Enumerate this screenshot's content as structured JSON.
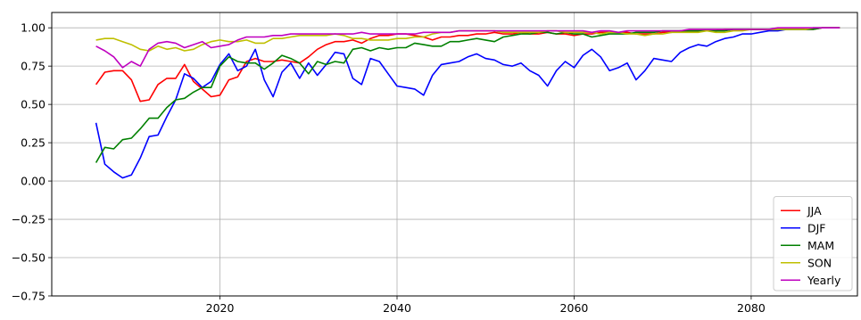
{
  "chart_data": {
    "type": "line",
    "title": "",
    "xlabel": "",
    "ylabel": "",
    "xlim": [
      2001,
      2092
    ],
    "ylim": [
      -0.75,
      1.1
    ],
    "x_ticks": [
      2020,
      2040,
      2060,
      2080
    ],
    "x_tick_labels": [
      "2020",
      "2040",
      "2060",
      "2080"
    ],
    "y_ticks": [
      -0.75,
      -0.5,
      -0.25,
      0.0,
      0.25,
      0.5,
      0.75,
      1.0
    ],
    "y_tick_labels": [
      "−0.75",
      "−0.50",
      "−0.25",
      "0.00",
      "0.25",
      "0.50",
      "0.75",
      "1.00"
    ],
    "grid": true,
    "legend_position": "lower-right",
    "x": [
      2006,
      2007,
      2008,
      2009,
      2010,
      2011,
      2012,
      2013,
      2014,
      2015,
      2016,
      2017,
      2018,
      2019,
      2020,
      2021,
      2022,
      2023,
      2024,
      2025,
      2026,
      2027,
      2028,
      2029,
      2030,
      2031,
      2032,
      2033,
      2034,
      2035,
      2036,
      2037,
      2038,
      2039,
      2040,
      2041,
      2042,
      2043,
      2044,
      2045,
      2046,
      2047,
      2048,
      2049,
      2050,
      2051,
      2052,
      2053,
      2054,
      2055,
      2056,
      2057,
      2058,
      2059,
      2060,
      2061,
      2062,
      2063,
      2064,
      2065,
      2066,
      2067,
      2068,
      2069,
      2070,
      2071,
      2072,
      2073,
      2074,
      2075,
      2076,
      2077,
      2078,
      2079,
      2080,
      2081,
      2082,
      2083,
      2084,
      2085,
      2086,
      2087,
      2088,
      2089,
      2090
    ],
    "series": [
      {
        "name": "JJA",
        "color": "#ff0000",
        "values": [
          0.63,
          0.71,
          0.72,
          0.72,
          0.66,
          0.52,
          0.53,
          0.63,
          0.67,
          0.67,
          0.76,
          0.65,
          0.6,
          0.55,
          0.56,
          0.66,
          0.68,
          0.78,
          0.8,
          0.78,
          0.78,
          0.79,
          0.78,
          0.77,
          0.81,
          0.86,
          0.89,
          0.91,
          0.91,
          0.92,
          0.9,
          0.93,
          0.95,
          0.95,
          0.96,
          0.96,
          0.95,
          0.94,
          0.92,
          0.94,
          0.94,
          0.95,
          0.95,
          0.96,
          0.96,
          0.97,
          0.96,
          0.96,
          0.97,
          0.96,
          0.96,
          0.97,
          0.96,
          0.96,
          0.95,
          0.96,
          0.96,
          0.97,
          0.97,
          0.97,
          0.97,
          0.96,
          0.96,
          0.96,
          0.97,
          0.97,
          0.98,
          0.98,
          0.98,
          0.98,
          0.98,
          0.99,
          0.99,
          0.99,
          0.99,
          0.99,
          0.99,
          0.99,
          0.99,
          0.99,
          0.99,
          0.99,
          1.0,
          1.0,
          1.0
        ]
      },
      {
        "name": "DJF",
        "color": "#0000ff",
        "values": [
          0.38,
          0.11,
          0.06,
          0.02,
          0.04,
          0.15,
          0.29,
          0.3,
          0.42,
          0.53,
          0.7,
          0.67,
          0.61,
          0.65,
          0.76,
          0.83,
          0.72,
          0.75,
          0.86,
          0.66,
          0.55,
          0.71,
          0.77,
          0.67,
          0.77,
          0.69,
          0.76,
          0.84,
          0.83,
          0.67,
          0.63,
          0.8,
          0.78,
          0.7,
          0.62,
          0.61,
          0.6,
          0.56,
          0.69,
          0.76,
          0.77,
          0.78,
          0.81,
          0.83,
          0.8,
          0.79,
          0.76,
          0.75,
          0.77,
          0.72,
          0.69,
          0.62,
          0.72,
          0.78,
          0.74,
          0.82,
          0.86,
          0.81,
          0.72,
          0.74,
          0.77,
          0.66,
          0.72,
          0.8,
          0.79,
          0.78,
          0.84,
          0.87,
          0.89,
          0.88,
          0.91,
          0.93,
          0.94,
          0.96,
          0.96,
          0.97,
          0.98,
          0.98,
          0.99,
          0.99,
          0.99,
          1.0,
          1.0,
          1.0,
          1.0
        ]
      },
      {
        "name": "MAM",
        "color": "#008000",
        "values": [
          0.12,
          0.22,
          0.21,
          0.27,
          0.28,
          0.34,
          0.41,
          0.41,
          0.48,
          0.53,
          0.54,
          0.58,
          0.61,
          0.61,
          0.75,
          0.81,
          0.78,
          0.77,
          0.77,
          0.73,
          0.77,
          0.82,
          0.8,
          0.77,
          0.7,
          0.78,
          0.76,
          0.78,
          0.77,
          0.86,
          0.87,
          0.85,
          0.87,
          0.86,
          0.87,
          0.87,
          0.9,
          0.89,
          0.88,
          0.88,
          0.91,
          0.91,
          0.92,
          0.93,
          0.92,
          0.91,
          0.94,
          0.95,
          0.96,
          0.96,
          0.97,
          0.97,
          0.96,
          0.97,
          0.96,
          0.96,
          0.94,
          0.95,
          0.96,
          0.96,
          0.96,
          0.97,
          0.97,
          0.97,
          0.98,
          0.98,
          0.98,
          0.98,
          0.98,
          0.98,
          0.98,
          0.98,
          0.99,
          0.99,
          0.99,
          0.99,
          0.99,
          0.99,
          0.99,
          0.99,
          0.99,
          0.99,
          1.0,
          1.0,
          1.0
        ]
      },
      {
        "name": "SON",
        "color": "#bfbf00",
        "values": [
          0.92,
          0.93,
          0.93,
          0.91,
          0.89,
          0.86,
          0.85,
          0.88,
          0.86,
          0.87,
          0.85,
          0.86,
          0.89,
          0.91,
          0.92,
          0.91,
          0.91,
          0.92,
          0.9,
          0.9,
          0.93,
          0.93,
          0.94,
          0.95,
          0.95,
          0.95,
          0.95,
          0.96,
          0.95,
          0.93,
          0.93,
          0.92,
          0.92,
          0.92,
          0.93,
          0.93,
          0.94,
          0.94,
          0.96,
          0.97,
          0.97,
          0.98,
          0.98,
          0.98,
          0.98,
          0.98,
          0.97,
          0.97,
          0.97,
          0.97,
          0.97,
          0.98,
          0.98,
          0.97,
          0.97,
          0.97,
          0.97,
          0.96,
          0.97,
          0.97,
          0.96,
          0.96,
          0.95,
          0.96,
          0.96,
          0.97,
          0.97,
          0.97,
          0.97,
          0.98,
          0.97,
          0.97,
          0.98,
          0.98,
          0.99,
          0.99,
          0.99,
          0.99,
          0.99,
          0.99,
          0.99,
          1.0,
          1.0,
          1.0,
          1.0
        ]
      },
      {
        "name": "Yearly",
        "color": "#bf00bf",
        "values": [
          0.88,
          0.85,
          0.81,
          0.74,
          0.78,
          0.75,
          0.86,
          0.9,
          0.91,
          0.9,
          0.87,
          0.89,
          0.91,
          0.87,
          0.88,
          0.89,
          0.92,
          0.94,
          0.94,
          0.94,
          0.95,
          0.95,
          0.96,
          0.96,
          0.96,
          0.96,
          0.96,
          0.96,
          0.96,
          0.96,
          0.97,
          0.96,
          0.96,
          0.96,
          0.96,
          0.96,
          0.96,
          0.97,
          0.97,
          0.97,
          0.97,
          0.98,
          0.98,
          0.98,
          0.98,
          0.98,
          0.98,
          0.98,
          0.98,
          0.98,
          0.98,
          0.98,
          0.98,
          0.98,
          0.98,
          0.98,
          0.97,
          0.98,
          0.98,
          0.97,
          0.98,
          0.98,
          0.98,
          0.98,
          0.98,
          0.98,
          0.98,
          0.99,
          0.99,
          0.99,
          0.99,
          0.99,
          0.99,
          0.99,
          0.99,
          0.99,
          0.99,
          1.0,
          1.0,
          1.0,
          1.0,
          1.0,
          1.0,
          1.0,
          1.0
        ]
      }
    ]
  }
}
